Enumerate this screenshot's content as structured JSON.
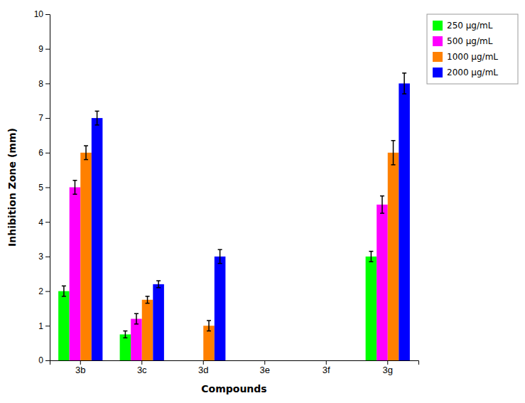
{
  "chart_data": {
    "type": "bar",
    "xlabel": "Compounds",
    "ylabel": "Inhibition Zone (mm)",
    "categories": [
      "3b",
      "3c",
      "3d",
      "3e",
      "3f",
      "3g"
    ],
    "series": [
      {
        "name": "250 μg/mL",
        "color": "#00ff00",
        "values": [
          2.0,
          0.75,
          0.0,
          0.0,
          0.0,
          3.0
        ],
        "errors": [
          0.15,
          0.1,
          0.0,
          0.0,
          0.0,
          0.15
        ]
      },
      {
        "name": "500 μg/mL",
        "color": "#ff00ff",
        "values": [
          5.0,
          1.2,
          0.0,
          0.0,
          0.0,
          4.5
        ],
        "errors": [
          0.2,
          0.15,
          0.0,
          0.0,
          0.0,
          0.25
        ]
      },
      {
        "name": "1000 μg/mL",
        "color": "#ff8000",
        "values": [
          6.0,
          1.75,
          1.0,
          0.0,
          0.0,
          6.0
        ],
        "errors": [
          0.2,
          0.1,
          0.15,
          0.0,
          0.0,
          0.35
        ]
      },
      {
        "name": "2000 μg/mL",
        "color": "#0000ff",
        "values": [
          7.0,
          2.2,
          3.0,
          0.0,
          0.0,
          8.0
        ],
        "errors": [
          0.2,
          0.1,
          0.2,
          0.0,
          0.0,
          0.3
        ]
      }
    ],
    "ylim": [
      0,
      10
    ],
    "yticks": [
      0,
      1,
      2,
      3,
      4,
      5,
      6,
      7,
      8,
      9,
      10
    ],
    "grid": false,
    "legend": "upper right"
  }
}
